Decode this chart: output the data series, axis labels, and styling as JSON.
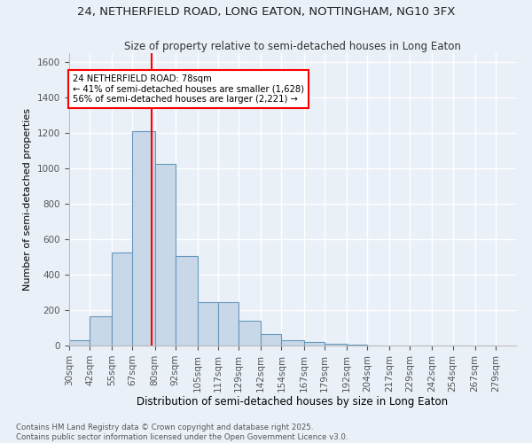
{
  "title1": "24, NETHERFIELD ROAD, LONG EATON, NOTTINGHAM, NG10 3FX",
  "title2": "Size of property relative to semi-detached houses in Long Eaton",
  "xlabel": "Distribution of semi-detached houses by size in Long Eaton",
  "ylabel": "Number of semi-detached properties",
  "bin_labels": [
    "30sqm",
    "42sqm",
    "55sqm",
    "67sqm",
    "80sqm",
    "92sqm",
    "105sqm",
    "117sqm",
    "129sqm",
    "142sqm",
    "154sqm",
    "167sqm",
    "179sqm",
    "192sqm",
    "204sqm",
    "217sqm",
    "229sqm",
    "242sqm",
    "254sqm",
    "267sqm",
    "279sqm"
  ],
  "bin_edges": [
    30,
    42,
    55,
    67,
    80,
    92,
    105,
    117,
    129,
    142,
    154,
    167,
    179,
    192,
    204,
    217,
    229,
    242,
    254,
    267,
    279
  ],
  "bar_heights": [
    30,
    165,
    525,
    1210,
    1025,
    505,
    245,
    245,
    140,
    65,
    30,
    20,
    10,
    5,
    2,
    2,
    0,
    0,
    0,
    0
  ],
  "bar_color": "#c8d8e8",
  "bar_edgecolor": "#6699bb",
  "property_line_x": 78,
  "annotation_text": "24 NETHERFIELD ROAD: 78sqm\n← 41% of semi-detached houses are smaller (1,628)\n56% of semi-detached houses are larger (2,221) →",
  "annotation_box_color": "white",
  "annotation_box_edgecolor": "red",
  "vline_color": "red",
  "ylim": [
    0,
    1650
  ],
  "yticks": [
    0,
    200,
    400,
    600,
    800,
    1000,
    1200,
    1400,
    1600
  ],
  "footer1": "Contains HM Land Registry data © Crown copyright and database right 2025.",
  "footer2": "Contains public sector information licensed under the Open Government Licence v3.0.",
  "bg_color": "#eaf0f8",
  "plot_bg_color": "#eaf0f8"
}
